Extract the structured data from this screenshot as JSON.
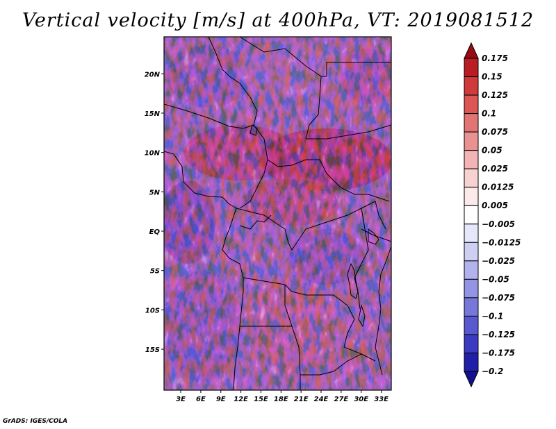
{
  "title": "Vertical velocity [m/s] at 400hPa, VT: 2019081512",
  "footer": "GrADS: IGES/COLA",
  "map": {
    "lat_labels": [
      "20N",
      "15N",
      "10N",
      "5N",
      "EQ",
      "5S",
      "10S",
      "15S"
    ],
    "lat_values": [
      20,
      15,
      10,
      5,
      0,
      -5,
      -10,
      -15
    ],
    "lon_labels": [
      "3E",
      "6E",
      "9E",
      "12E",
      "15E",
      "18E",
      "21E",
      "24E",
      "27E",
      "30E",
      "33E"
    ],
    "lon_values": [
      3,
      6,
      9,
      12,
      15,
      18,
      21,
      24,
      27,
      30,
      33
    ],
    "extent": {
      "lon_min": 0.5,
      "lon_max": 34.5,
      "lat_min": -20.2,
      "lat_max": 24.7
    }
  },
  "colorbar": {
    "labels": [
      "0.175",
      "0.15",
      "0.125",
      "0.1",
      "0.075",
      "0.05",
      "0.025",
      "0.0125",
      "0.005",
      "−0.005",
      "−0.0125",
      "−0.025",
      "−0.05",
      "−0.075",
      "−0.1",
      "−0.125",
      "−0.175",
      "−0.2"
    ],
    "colors": [
      "#9a0a14",
      "#b81d24",
      "#cf3a3a",
      "#dc5656",
      "#e27474",
      "#ea9292",
      "#f2b4b4",
      "#f8d2d2",
      "#fce9e9",
      "#ffffff",
      "#e7e7fb",
      "#cfcff4",
      "#b2b2ed",
      "#9494e4",
      "#7777da",
      "#5858cf",
      "#3b3bc2",
      "#2020a8",
      "#11118e"
    ]
  },
  "colors": {
    "frame": "#000000",
    "border": "#000000",
    "coast": "#000000"
  }
}
